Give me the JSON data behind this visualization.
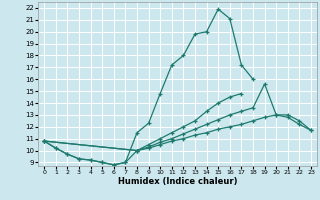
{
  "title": "",
  "xlabel": "Humidex (Indice chaleur)",
  "background_color": "#cce8ee",
  "grid_color": "#ffffff",
  "line_color": "#1e7a6e",
  "xlim": [
    -0.5,
    23.5
  ],
  "ylim": [
    8.7,
    22.5
  ],
  "xticks": [
    0,
    1,
    2,
    3,
    4,
    5,
    6,
    7,
    8,
    9,
    10,
    11,
    12,
    13,
    14,
    15,
    16,
    17,
    18,
    19,
    20,
    21,
    22,
    23
  ],
  "yticks": [
    9,
    10,
    11,
    12,
    13,
    14,
    15,
    16,
    17,
    18,
    19,
    20,
    21,
    22
  ],
  "lines": [
    {
      "x": [
        0,
        1,
        2,
        3,
        4,
        5,
        6,
        7,
        8,
        9,
        10,
        11,
        12,
        13,
        14,
        15,
        16,
        17,
        18
      ],
      "y": [
        10.8,
        10.2,
        9.7,
        9.3,
        9.2,
        9.0,
        8.8,
        9.0,
        11.5,
        12.3,
        14.8,
        17.2,
        18.0,
        19.8,
        20.0,
        21.9,
        21.1,
        17.2,
        16.0
      ]
    },
    {
      "x": [
        0,
        1,
        2,
        3,
        4,
        5,
        6,
        7,
        8,
        9,
        10,
        11,
        12,
        13,
        14,
        15,
        16,
        17
      ],
      "y": [
        10.8,
        10.2,
        9.7,
        9.3,
        9.2,
        9.0,
        8.8,
        9.0,
        10.0,
        10.5,
        11.0,
        11.5,
        12.0,
        12.5,
        13.3,
        14.0,
        14.5,
        14.8
      ]
    },
    {
      "x": [
        0,
        8,
        9,
        10,
        11,
        12,
        13,
        14,
        15,
        16,
        17,
        18,
        19,
        20,
        21,
        22,
        23
      ],
      "y": [
        10.8,
        10.0,
        10.3,
        10.7,
        11.0,
        11.4,
        11.8,
        12.2,
        12.6,
        13.0,
        13.3,
        13.6,
        15.6,
        13.0,
        13.0,
        12.5,
        11.7
      ]
    },
    {
      "x": [
        0,
        8,
        9,
        10,
        11,
        12,
        13,
        14,
        15,
        16,
        17,
        18,
        19,
        20,
        21,
        22,
        23
      ],
      "y": [
        10.8,
        10.0,
        10.2,
        10.5,
        10.8,
        11.0,
        11.3,
        11.5,
        11.8,
        12.0,
        12.2,
        12.5,
        12.8,
        13.0,
        12.8,
        12.2,
        11.7
      ]
    }
  ]
}
